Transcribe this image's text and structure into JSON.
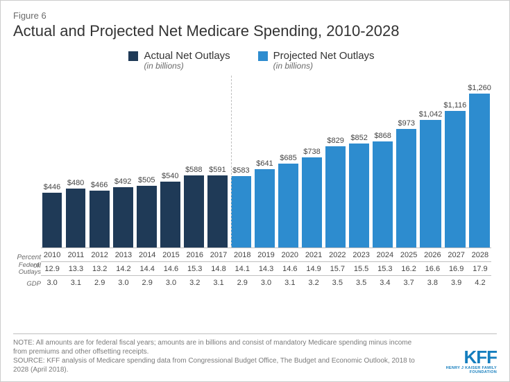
{
  "figure_label": "Figure 6",
  "title": "Actual and Projected Net Medicare Spending, 2010-2028",
  "legend": {
    "actual": {
      "name": "Actual Net Outlays",
      "sub": "(in billions)",
      "color": "#1f3a57"
    },
    "projected": {
      "name": "Projected Net Outlays",
      "sub": "(in billions)",
      "color": "#2d8ccf"
    }
  },
  "chart": {
    "type": "bar",
    "value_prefix": "$",
    "ymax": 1350,
    "background_color": "#ffffff",
    "divider_after_index": 7,
    "axis_labels": {
      "percent_of": "Percent of:",
      "federal_outlays": "Federal Outlays",
      "gdp": "GDP"
    },
    "bars": [
      {
        "year": "2010",
        "value": 446,
        "series": "actual",
        "fed": "12.9",
        "gdp": "3.0"
      },
      {
        "year": "2011",
        "value": 480,
        "series": "actual",
        "fed": "13.3",
        "gdp": "3.1"
      },
      {
        "year": "2012",
        "value": 466,
        "series": "actual",
        "fed": "13.2",
        "gdp": "2.9"
      },
      {
        "year": "2013",
        "value": 492,
        "series": "actual",
        "fed": "14.2",
        "gdp": "3.0"
      },
      {
        "year": "2014",
        "value": 505,
        "series": "actual",
        "fed": "14.4",
        "gdp": "2.9"
      },
      {
        "year": "2015",
        "value": 540,
        "series": "actual",
        "fed": "14.6",
        "gdp": "3.0"
      },
      {
        "year": "2016",
        "value": 588,
        "series": "actual",
        "fed": "15.3",
        "gdp": "3.2"
      },
      {
        "year": "2017",
        "value": 591,
        "series": "actual",
        "fed": "14.8",
        "gdp": "3.1"
      },
      {
        "year": "2018",
        "value": 583,
        "series": "projected",
        "fed": "14.1",
        "gdp": "2.9"
      },
      {
        "year": "2019",
        "value": 641,
        "series": "projected",
        "fed": "14.3",
        "gdp": "3.0"
      },
      {
        "year": "2020",
        "value": 685,
        "series": "projected",
        "fed": "14.6",
        "gdp": "3.1"
      },
      {
        "year": "2021",
        "value": 738,
        "series": "projected",
        "fed": "14.9",
        "gdp": "3.2"
      },
      {
        "year": "2022",
        "value": 829,
        "series": "projected",
        "fed": "15.7",
        "gdp": "3.5"
      },
      {
        "year": "2023",
        "value": 852,
        "series": "projected",
        "fed": "15.5",
        "gdp": "3.5"
      },
      {
        "year": "2024",
        "value": 868,
        "series": "projected",
        "fed": "15.3",
        "gdp": "3.4"
      },
      {
        "year": "2025",
        "value": 973,
        "series": "projected",
        "fed": "16.2",
        "gdp": "3.7"
      },
      {
        "year": "2026",
        "value": 1042,
        "series": "projected",
        "fed": "16.6",
        "gdp": "3.8"
      },
      {
        "year": "2027",
        "value": 1116,
        "series": "projected",
        "fed": "16.9",
        "gdp": "3.9"
      },
      {
        "year": "2028",
        "value": 1260,
        "series": "projected",
        "fed": "17.9",
        "gdp": "4.2"
      }
    ]
  },
  "footer": {
    "note": "NOTE: All amounts are for federal fiscal years; amounts are in billions and consist of mandatory Medicare spending minus income from premiums and other offsetting receipts.",
    "source": "SOURCE: KFF analysis of Medicare spending data from Congressional Budget Office, The Budget and Economic Outlook, 2018 to 2028 (April 2018).",
    "logo_main": "KFF",
    "logo_sub": "HENRY J KAISER FAMILY FOUNDATION"
  }
}
